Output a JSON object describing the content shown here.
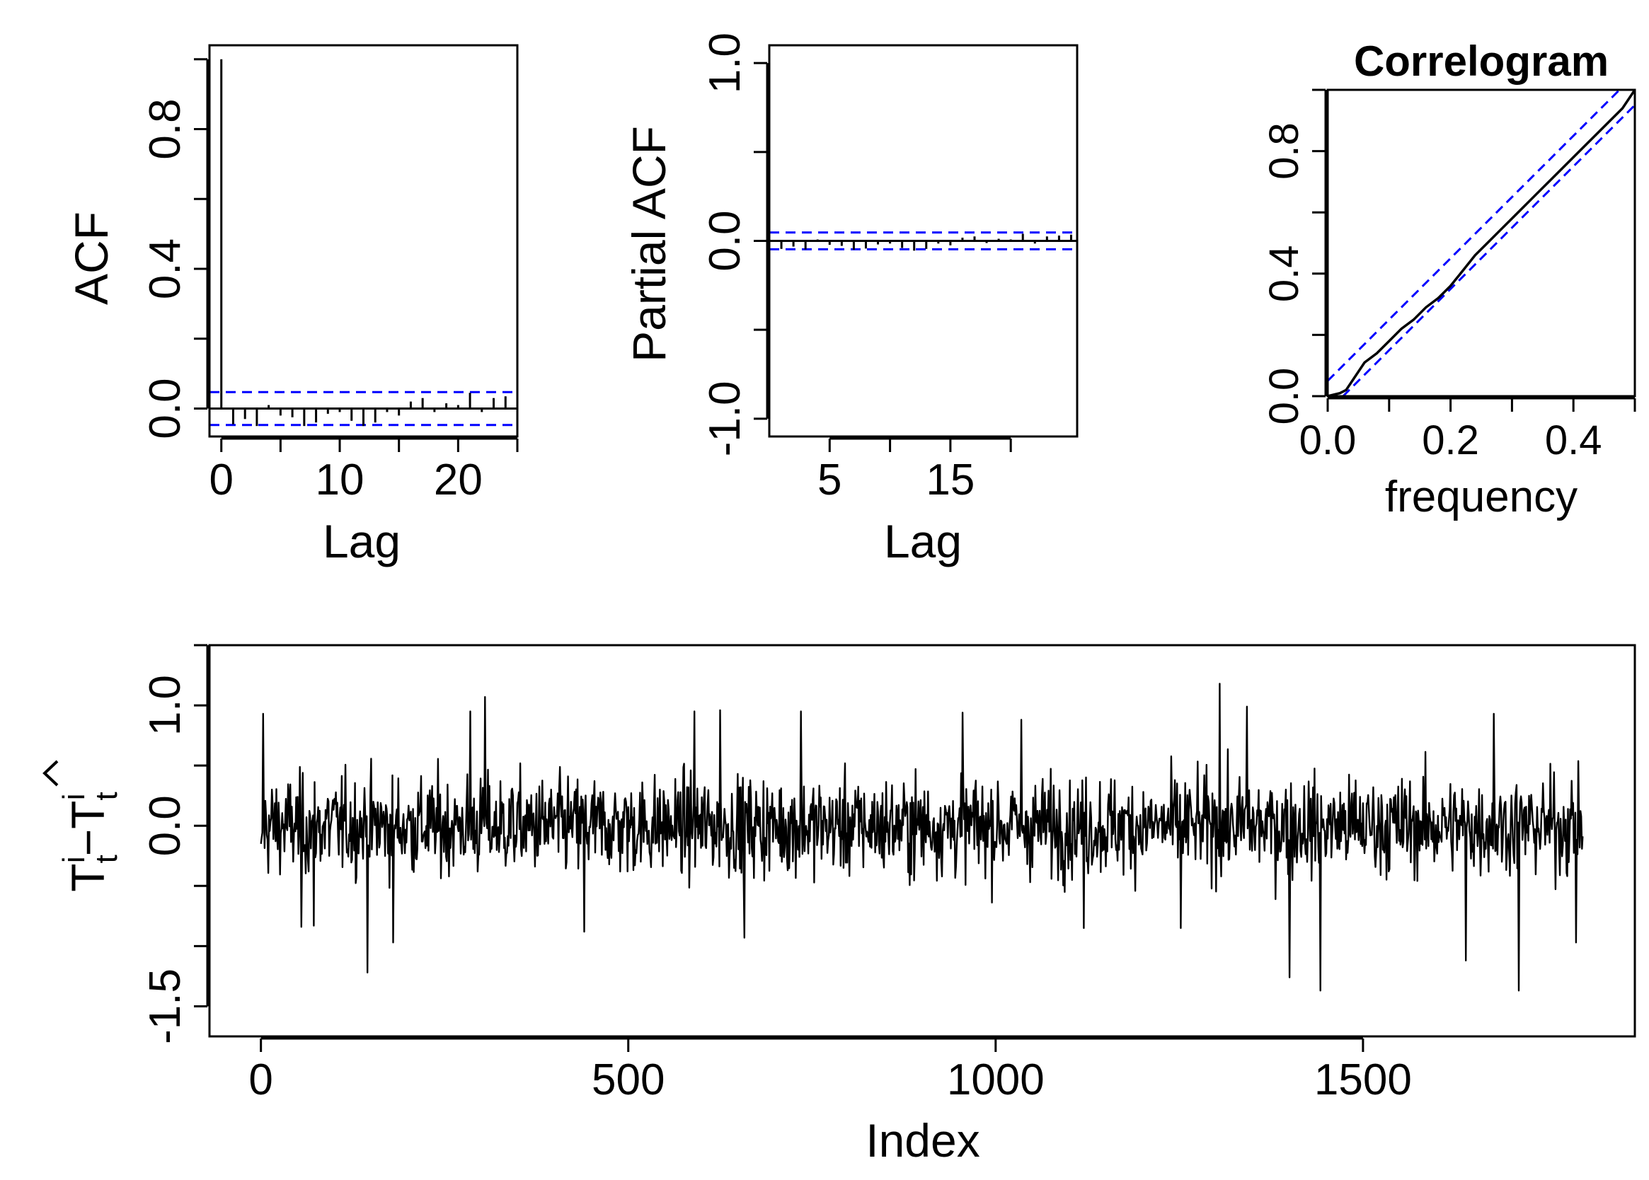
{
  "colors": {
    "series": "#000000",
    "confidence_band": "#0000ff",
    "background": "#ffffff"
  },
  "chart_data": [
    {
      "id": "acf",
      "type": "bar",
      "title": "",
      "xlabel": "Lag",
      "ylabel": "ACF",
      "xlim": [
        -1,
        25
      ],
      "ylim": [
        -0.08,
        1.04
      ],
      "xticks": [
        0,
        10,
        20
      ],
      "xtick_labels": [
        "0",
        "10",
        "20"
      ],
      "yticks": [
        0.0,
        0.4,
        0.8
      ],
      "ytick_labels": [
        "0.0",
        "0.4",
        "0.8"
      ],
      "confidence_band": [
        -0.047,
        0.047
      ],
      "grid": false,
      "x": [
        0,
        1,
        2,
        3,
        4,
        5,
        6,
        7,
        8,
        9,
        10,
        11,
        12,
        13,
        14,
        15,
        16,
        17,
        18,
        19,
        20,
        21,
        22,
        23,
        24,
        25
      ],
      "values": [
        1.0,
        -0.045,
        -0.03,
        -0.05,
        0.01,
        -0.02,
        -0.025,
        -0.05,
        -0.04,
        -0.015,
        -0.01,
        -0.035,
        -0.05,
        -0.04,
        -0.01,
        -0.02,
        0.02,
        0.03,
        -0.01,
        0.015,
        0.01,
        0.045,
        -0.01,
        0.03,
        0.035,
        0.04
      ]
    },
    {
      "id": "pacf",
      "type": "bar",
      "title": "",
      "xlabel": "Lag",
      "ylabel": "Partial ACF",
      "xlim": [
        0,
        25.5
      ],
      "ylim": [
        -1.1,
        1.1
      ],
      "xticks": [
        5,
        15
      ],
      "xtick_labels": [
        "5",
        "15"
      ],
      "minor_xticks": [
        10,
        20
      ],
      "yticks": [
        -1.0,
        -0.5,
        0.0,
        0.5,
        1.0
      ],
      "ytick_labels": [
        "-1.0",
        "",
        "0.0",
        "",
        "1.0"
      ],
      "confidence_band": [
        -0.047,
        0.047
      ],
      "grid": false,
      "x": [
        1,
        2,
        3,
        4,
        5,
        6,
        7,
        8,
        9,
        10,
        11,
        12,
        13,
        14,
        15,
        16,
        17,
        18,
        19,
        20,
        21,
        22,
        23,
        24,
        25
      ],
      "values": [
        -0.045,
        -0.032,
        -0.048,
        0.008,
        -0.022,
        -0.028,
        -0.05,
        -0.043,
        -0.02,
        -0.015,
        -0.04,
        -0.055,
        -0.045,
        -0.015,
        -0.025,
        0.018,
        0.025,
        -0.012,
        0.012,
        0.008,
        0.04,
        -0.015,
        0.025,
        0.03,
        0.035
      ]
    },
    {
      "id": "correlogram",
      "type": "line",
      "title": "Correlogram",
      "xlabel": "frequency",
      "ylabel": "",
      "xlim": [
        0,
        0.5
      ],
      "ylim": [
        0,
        1.0
      ],
      "xticks": [
        0.0,
        0.1,
        0.2,
        0.3,
        0.4,
        0.5
      ],
      "xtick_labels": [
        "0.0",
        "",
        "0.2",
        "",
        "0.4",
        ""
      ],
      "yticks": [
        0.0,
        0.2,
        0.4,
        0.6,
        0.8,
        1.0
      ],
      "ytick_labels": [
        "0.0",
        "",
        "0.4",
        "",
        "0.8",
        ""
      ],
      "grid": false,
      "series": [
        {
          "x": [
            0.0,
            0.01,
            0.02,
            0.03,
            0.04,
            0.05,
            0.06,
            0.08,
            0.1,
            0.12,
            0.14,
            0.16,
            0.18,
            0.2,
            0.22,
            0.24,
            0.26,
            0.28,
            0.3,
            0.32,
            0.34,
            0.36,
            0.38,
            0.4,
            0.42,
            0.44,
            0.46,
            0.48,
            0.5
          ],
          "values": [
            0.0,
            0.005,
            0.01,
            0.02,
            0.05,
            0.08,
            0.11,
            0.14,
            0.18,
            0.22,
            0.25,
            0.29,
            0.32,
            0.36,
            0.41,
            0.46,
            0.5,
            0.54,
            0.58,
            0.62,
            0.66,
            0.7,
            0.74,
            0.78,
            0.82,
            0.86,
            0.9,
            0.94,
            1.0
          ]
        }
      ],
      "bands": [
        {
          "x": [
            0.0,
            0.5
          ],
          "values": [
            0.05,
            1.05
          ]
        },
        {
          "x": [
            0.0,
            0.5
          ],
          "values": [
            -0.05,
            0.95
          ]
        }
      ]
    },
    {
      "id": "residuals",
      "type": "line",
      "title": "",
      "xlabel": "Index",
      "ylabel": "T_t^i - T̂_t^i",
      "ylabel_parts": {
        "base": "T",
        "sub": "t",
        "sup": "i",
        "minus": "−"
      },
      "xlim": [
        -70,
        1870
      ],
      "ylim": [
        -1.75,
        1.5
      ],
      "xticks": [
        0,
        500,
        1000,
        1500
      ],
      "xtick_labels": [
        "0",
        "500",
        "1000",
        "1500"
      ],
      "yticks": [
        -1.5,
        -1.0,
        -0.5,
        0.0,
        0.5,
        1.0,
        1.5
      ],
      "ytick_labels": [
        "-1.5",
        "",
        "",
        "0.0",
        "",
        "1.0",
        ""
      ],
      "grid": false,
      "n_points": 1800,
      "spread": 0.28,
      "extremes": [
        {
          "x": 3,
          "y": 0.93
        },
        {
          "x": 55,
          "y": -0.84
        },
        {
          "x": 72,
          "y": -0.83
        },
        {
          "x": 145,
          "y": -1.22
        },
        {
          "x": 180,
          "y": -0.97
        },
        {
          "x": 285,
          "y": 0.95
        },
        {
          "x": 305,
          "y": 1.07
        },
        {
          "x": 440,
          "y": -0.88
        },
        {
          "x": 590,
          "y": 0.95
        },
        {
          "x": 625,
          "y": 0.96
        },
        {
          "x": 658,
          "y": -0.93
        },
        {
          "x": 735,
          "y": 0.95
        },
        {
          "x": 955,
          "y": 0.94
        },
        {
          "x": 1035,
          "y": 0.88
        },
        {
          "x": 1120,
          "y": -0.85
        },
        {
          "x": 1252,
          "y": -0.85
        },
        {
          "x": 1305,
          "y": 1.18
        },
        {
          "x": 1342,
          "y": 0.99
        },
        {
          "x": 1400,
          "y": -1.26
        },
        {
          "x": 1442,
          "y": -1.37
        },
        {
          "x": 1640,
          "y": -1.12
        },
        {
          "x": 1678,
          "y": 0.93
        },
        {
          "x": 1712,
          "y": -1.37
        },
        {
          "x": 1790,
          "y": -0.97
        }
      ]
    }
  ]
}
